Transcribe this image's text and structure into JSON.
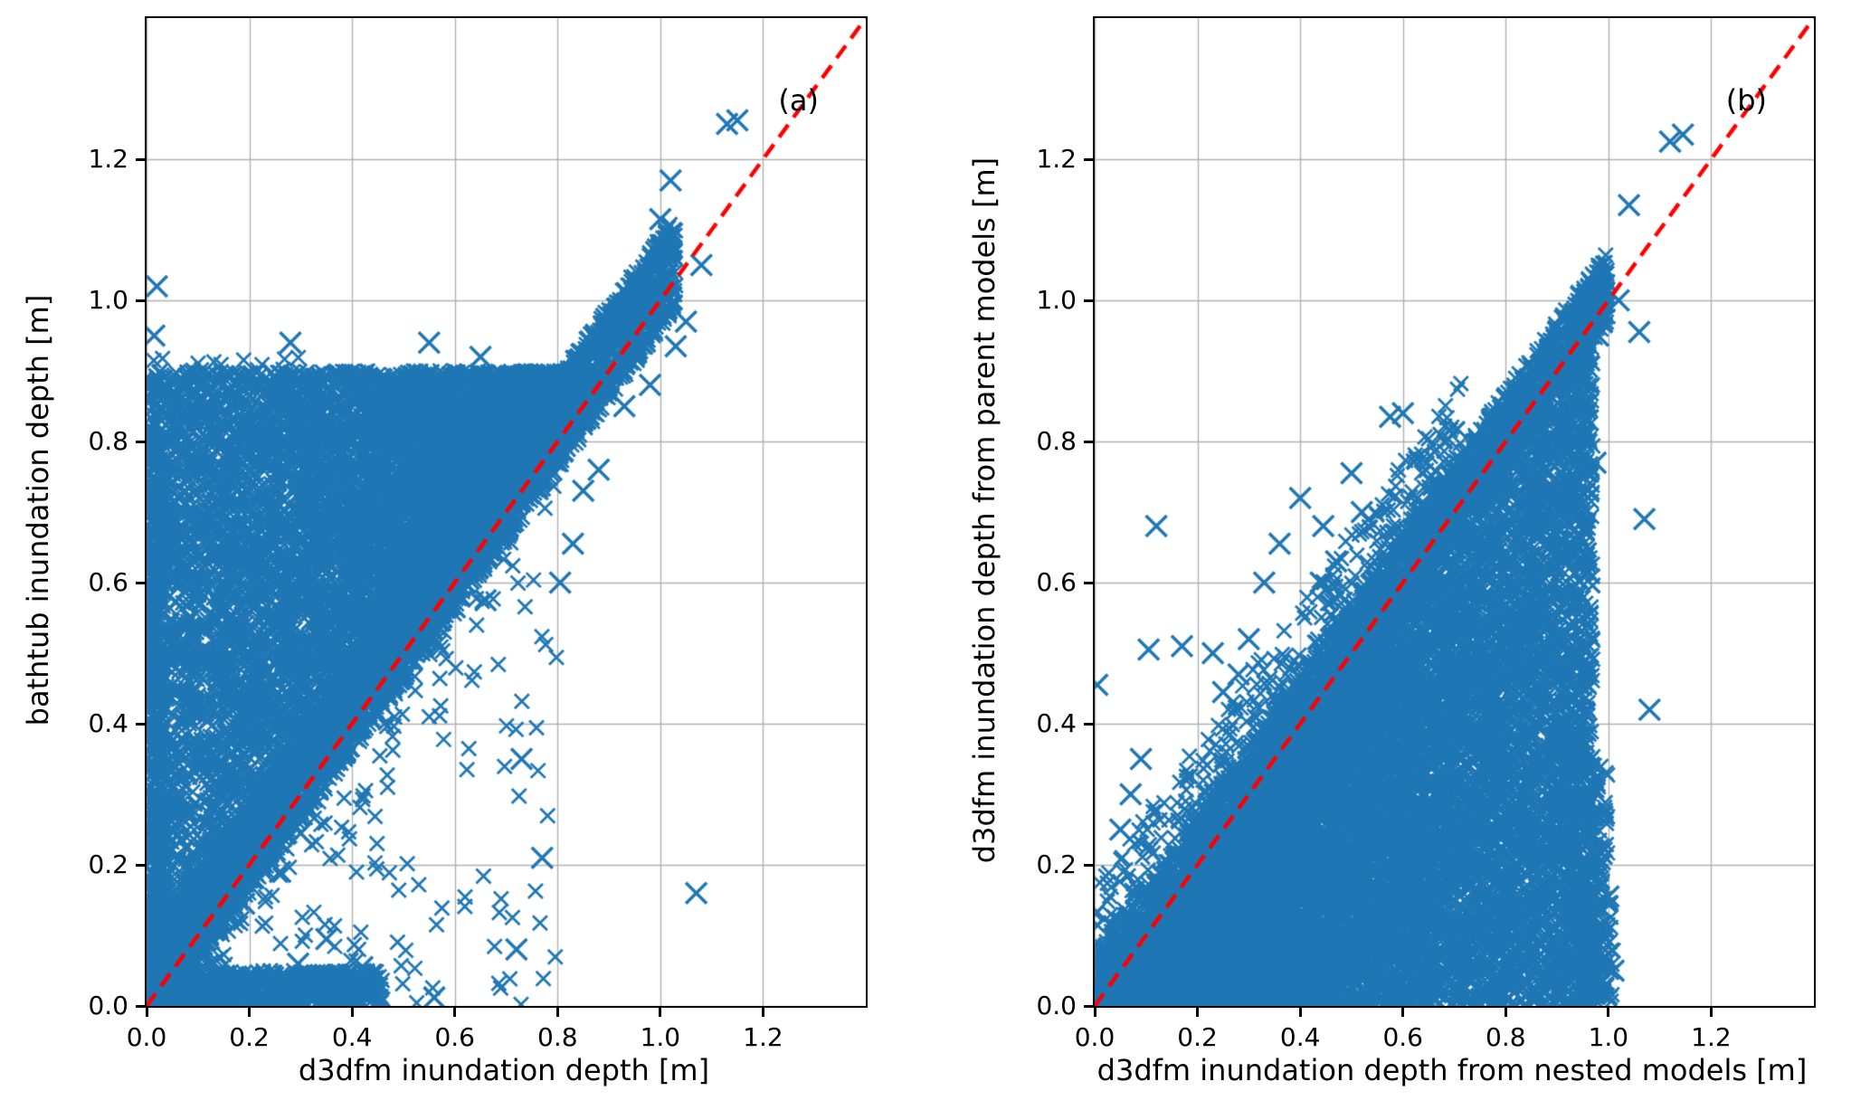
{
  "figure": {
    "background": "#ffffff"
  },
  "chart_data": [
    {
      "type": "scatter",
      "panel_label": "(a)",
      "xlabel": "d3dfm inundation depth [m]",
      "ylabel": "bathtub inundation depth [m]",
      "xlim": [
        0,
        1.4
      ],
      "ylim": [
        0,
        1.4
      ],
      "xticks": [
        0.0,
        0.2,
        0.4,
        0.6,
        0.8,
        1.0,
        1.2
      ],
      "yticks": [
        0.0,
        0.2,
        0.4,
        0.6,
        0.8,
        1.0,
        1.2
      ],
      "grid": {
        "on": true,
        "color": "#b0b0b0",
        "width": 1.4
      },
      "seed": 42,
      "marker": {
        "shape": "x",
        "color": "#1f77b4",
        "size": 16,
        "line_width": 2.8,
        "outlier_size": 23,
        "outlier_line_width": 3.6
      },
      "identity_line": {
        "color": "#ff0000",
        "width": 4.5,
        "dash": [
          17,
          10
        ],
        "from": [
          0,
          0
        ],
        "to": [
          1.4,
          1.4
        ]
      },
      "cloud_clusters": [
        {
          "mode": "above_diag_fill",
          "n": 9000,
          "x_range": [
            0.0,
            0.9
          ],
          "y_cap": 0.9
        },
        {
          "mode": "diag_band",
          "n": 3500,
          "x_range": [
            0.0,
            1.03
          ],
          "offset": -0.04,
          "width": 0.13
        },
        {
          "mode": "below_diag",
          "n": 260,
          "x_range": [
            0.03,
            0.8
          ],
          "pow": 2
        },
        {
          "mode": "rect",
          "n": 700,
          "x_range": [
            0.0,
            0.46
          ],
          "y_range": [
            0.0,
            0.05
          ]
        },
        {
          "mode": "rect",
          "n": 450,
          "x_range": [
            0.0,
            0.035
          ],
          "y_range": [
            0.0,
            0.82
          ]
        },
        {
          "mode": "rect",
          "n": 70,
          "x_range": [
            0.0,
            0.3
          ],
          "y_range": [
            0.75,
            0.92
          ]
        },
        {
          "mode": "rect",
          "n": 60,
          "x_range": [
            0.25,
            0.62
          ],
          "y_range": [
            0.78,
            0.9
          ]
        }
      ],
      "outliers": [
        [
          0.02,
          1.02
        ],
        [
          0.015,
          0.95
        ],
        [
          0.01,
          0.88
        ],
        [
          0.05,
          0.8
        ],
        [
          0.07,
          0.78
        ],
        [
          0.23,
          0.87
        ],
        [
          0.26,
          0.875
        ],
        [
          0.28,
          0.94
        ],
        [
          0.305,
          0.87
        ],
        [
          0.4,
          0.862
        ],
        [
          0.44,
          0.88
        ],
        [
          0.485,
          0.875
        ],
        [
          0.52,
          0.89
        ],
        [
          0.55,
          0.94
        ],
        [
          0.57,
          0.88
        ],
        [
          0.6,
          0.855
        ],
        [
          0.62,
          0.875
        ],
        [
          0.65,
          0.92
        ],
        [
          0.2,
          0.8
        ],
        [
          0.16,
          0.78
        ],
        [
          0.12,
          0.66
        ],
        [
          0.09,
          0.6
        ],
        [
          0.62,
          0.6
        ],
        [
          0.6,
          0.565
        ],
        [
          0.66,
          0.575
        ],
        [
          0.805,
          0.6
        ],
        [
          0.83,
          0.655
        ],
        [
          0.85,
          0.73
        ],
        [
          0.88,
          0.76
        ],
        [
          0.93,
          0.85
        ],
        [
          0.98,
          0.88
        ],
        [
          1.03,
          0.935
        ],
        [
          1.05,
          0.97
        ],
        [
          1.08,
          1.05
        ],
        [
          1.0,
          1.115
        ],
        [
          1.02,
          1.17
        ],
        [
          1.13,
          1.25
        ],
        [
          1.15,
          1.255
        ],
        [
          0.73,
          0.35
        ],
        [
          0.72,
          0.08
        ],
        [
          0.77,
          0.21
        ],
        [
          1.07,
          0.16
        ],
        [
          0.35,
          0.095
        ],
        [
          0.295,
          0.06
        ],
        [
          0.42,
          0.055
        ],
        [
          0.56,
          0.012
        ],
        [
          0.145,
          0.185
        ],
        [
          0.19,
          0.145
        ],
        [
          0.26,
          0.19
        ],
        [
          0.3,
          0.245
        ]
      ]
    },
    {
      "type": "scatter",
      "panel_label": "(b)",
      "xlabel": "d3dfm inundation depth from nested models [m]",
      "ylabel": "d3dfm inundation depth from parent models [m]",
      "xlim": [
        0,
        1.4
      ],
      "ylim": [
        0,
        1.4
      ],
      "xticks": [
        0.0,
        0.2,
        0.4,
        0.6,
        0.8,
        1.0,
        1.2
      ],
      "yticks": [
        0.0,
        0.2,
        0.4,
        0.6,
        0.8,
        1.0,
        1.2
      ],
      "grid": {
        "on": true,
        "color": "#b0b0b0",
        "width": 1.4
      },
      "seed": 7,
      "marker": {
        "shape": "x",
        "color": "#1f77b4",
        "size": 16,
        "line_width": 2.8,
        "outlier_size": 23,
        "outlier_line_width": 3.6
      },
      "identity_line": {
        "color": "#ff0000",
        "width": 4.5,
        "dash": [
          17,
          10
        ],
        "from": [
          0,
          0
        ],
        "to": [
          1.4,
          1.4
        ]
      },
      "cloud_clusters": [
        {
          "mode": "below_diag_tri",
          "n": 13000,
          "x_range": [
            0.01,
            0.97
          ]
        },
        {
          "mode": "diag_band",
          "n": 2500,
          "x_range": [
            0.0,
            1.0
          ],
          "offset": -0.03,
          "width": 0.1
        },
        {
          "mode": "diag_band",
          "n": 450,
          "x_range": [
            0.0,
            0.72
          ],
          "offset": 0.0,
          "width": 0.17
        },
        {
          "mode": "rect",
          "n": 250,
          "x_range": [
            0.9,
            1.0
          ],
          "y_range": [
            0.0,
            0.35
          ]
        },
        {
          "mode": "rect",
          "n": 100,
          "x_range": [
            0.95,
            1.01
          ],
          "y_range": [
            0.0,
            0.15
          ]
        }
      ],
      "outliers": [
        [
          1.12,
          1.225
        ],
        [
          1.145,
          1.235
        ],
        [
          1.04,
          1.135
        ],
        [
          1.02,
          1.0
        ],
        [
          1.06,
          0.955
        ],
        [
          0.98,
          0.95
        ],
        [
          1.07,
          0.69
        ],
        [
          1.08,
          0.42
        ],
        [
          0.97,
          0.27
        ],
        [
          1.0,
          0.155
        ],
        [
          1.01,
          0.05
        ],
        [
          0.12,
          0.68
        ],
        [
          0.105,
          0.505
        ],
        [
          0.17,
          0.51
        ],
        [
          0.23,
          0.5
        ],
        [
          0.25,
          0.445
        ],
        [
          0.28,
          0.47
        ],
        [
          0.005,
          0.455
        ],
        [
          0.575,
          0.835
        ],
        [
          0.6,
          0.84
        ],
        [
          0.4,
          0.72
        ],
        [
          0.445,
          0.68
        ],
        [
          0.36,
          0.655
        ],
        [
          0.33,
          0.6
        ],
        [
          0.5,
          0.755
        ],
        [
          0.52,
          0.7
        ],
        [
          0.95,
          0.55
        ],
        [
          0.93,
          0.5
        ],
        [
          0.96,
          0.83
        ],
        [
          0.975,
          0.77
        ],
        [
          0.94,
          0.72
        ],
        [
          0.91,
          0.655
        ],
        [
          0.44,
          0.6
        ],
        [
          0.47,
          0.63
        ],
        [
          0.3,
          0.52
        ],
        [
          0.07,
          0.3
        ],
        [
          0.05,
          0.25
        ],
        [
          0.09,
          0.35
        ]
      ]
    }
  ]
}
